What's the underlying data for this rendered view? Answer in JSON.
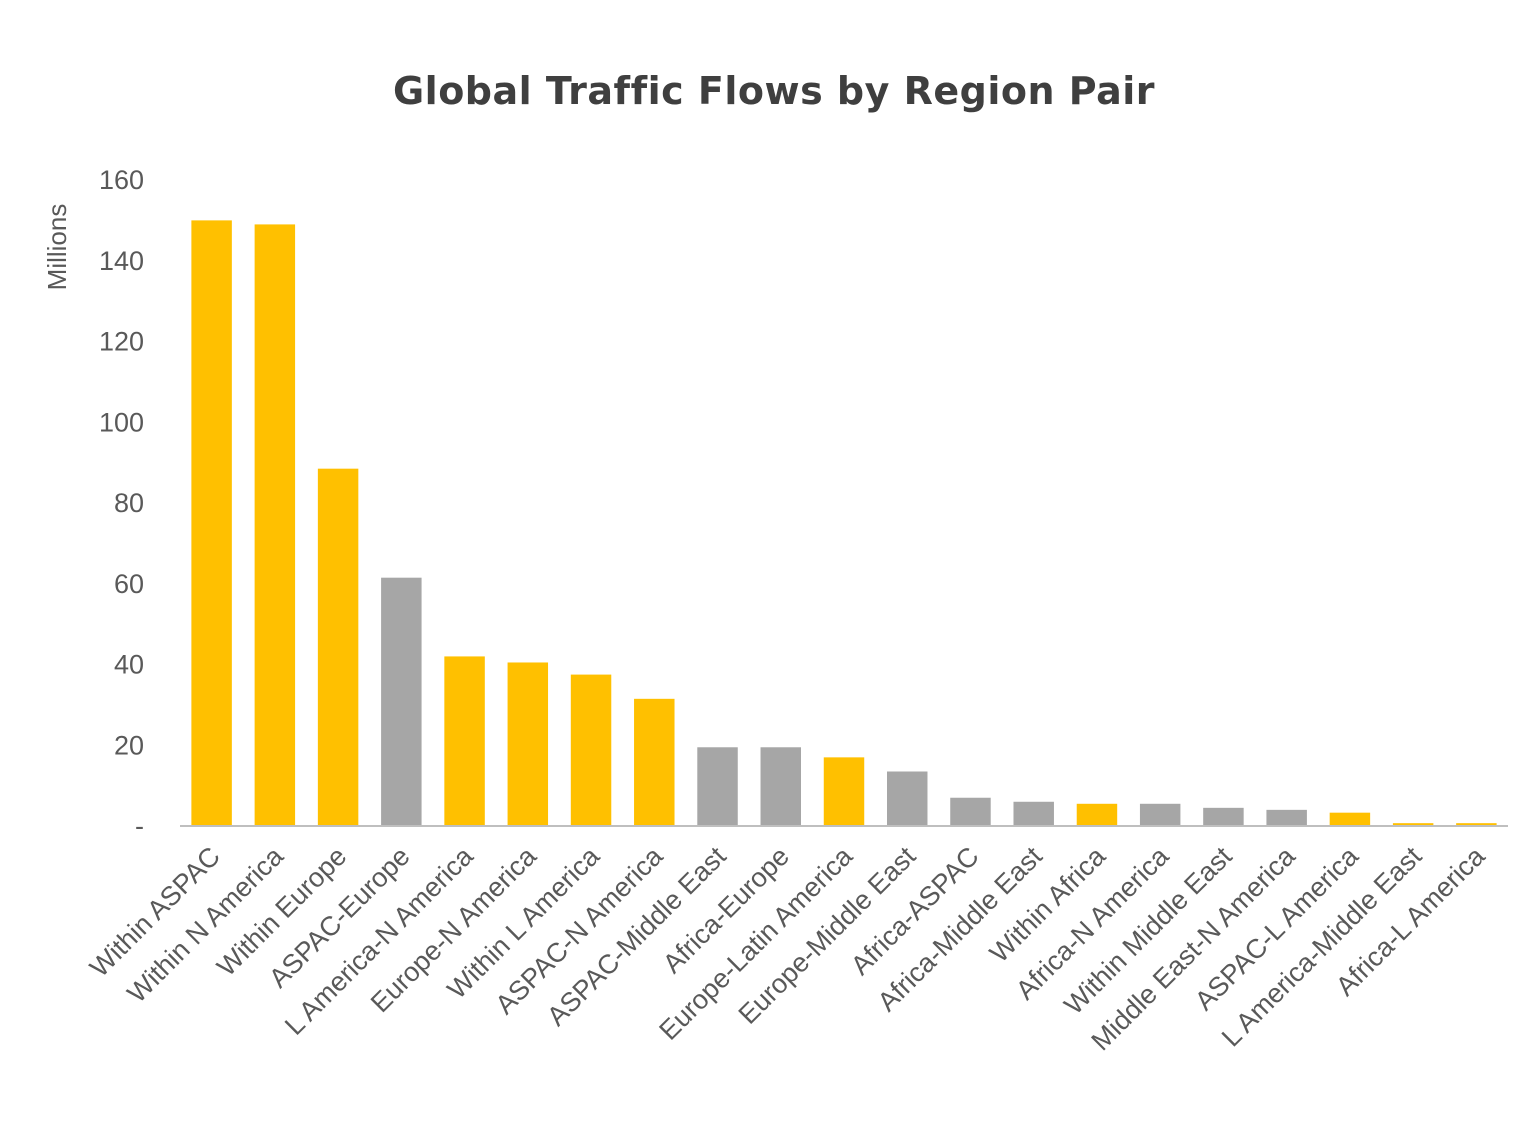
{
  "chart_data": {
    "type": "bar",
    "title": "Global Traffic Flows by Region Pair",
    "ylabel": "Millions",
    "ylim": [
      0,
      160
    ],
    "yticks": [
      0,
      20,
      40,
      60,
      80,
      100,
      120,
      140,
      160
    ],
    "ytick_labels": [
      "-",
      "20",
      "40",
      "60",
      "80",
      "100",
      "120",
      "140",
      "160"
    ],
    "grid": false,
    "legend": "none",
    "colors": {
      "highlight": "#FFC000",
      "other": "#A6A6A6"
    },
    "categories": [
      "Within ASPAC",
      "Within N America",
      "Within Europe",
      "ASPAC-Europe",
      "L America-N America",
      "Europe-N America",
      "Within L America",
      "ASPAC-N America",
      "ASPAC-Middle East",
      "Africa-Europe",
      "Europe-Latin America",
      "Europe-Middle East",
      "Africa-ASPAC",
      "Africa-Middle East",
      "Within Africa",
      "Africa-N America",
      "Within Middle East",
      "Middle East-N America",
      "ASPAC-L America",
      "L America-Middle East",
      "Africa-L America"
    ],
    "values": [
      150,
      149,
      88.5,
      61.5,
      42,
      40.5,
      37.5,
      31.5,
      19.5,
      19.5,
      17,
      13.5,
      7,
      6,
      5.5,
      5.5,
      4.5,
      4,
      3.3,
      0.7,
      0.7
    ],
    "bar_colors": [
      "highlight",
      "highlight",
      "highlight",
      "other",
      "highlight",
      "highlight",
      "highlight",
      "highlight",
      "other",
      "other",
      "highlight",
      "other",
      "other",
      "other",
      "highlight",
      "other",
      "other",
      "other",
      "highlight",
      "highlight",
      "highlight"
    ]
  }
}
